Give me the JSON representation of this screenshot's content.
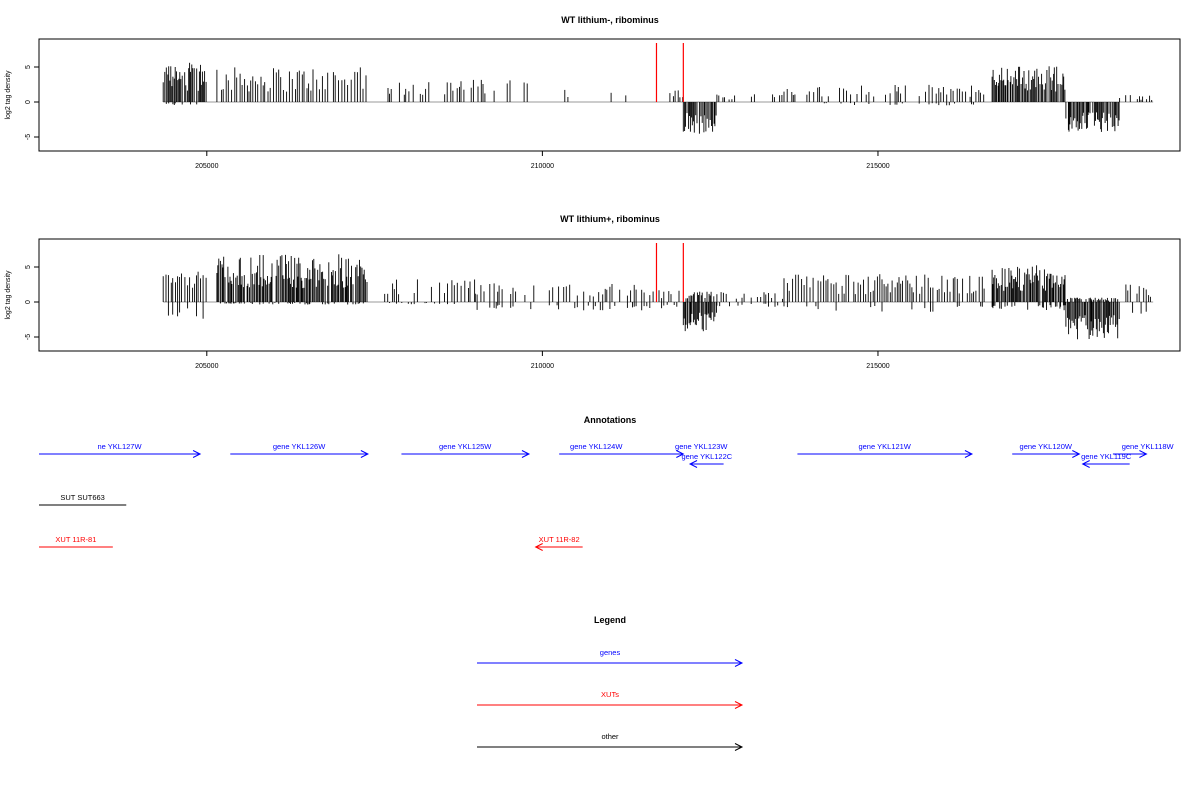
{
  "chart_data": [
    {
      "type": "bar",
      "title": "WT lithium-, ribominus",
      "xlabel": "",
      "ylabel": "log2 tag density",
      "xlim": [
        202500,
        219500
      ],
      "ylim": [
        -7,
        9
      ],
      "xticks": [
        205000,
        210000,
        215000
      ],
      "yticks": [
        -5,
        0,
        5
      ],
      "markers": [
        211700,
        212100
      ],
      "segments": [
        {
          "x": [
            204350,
            205000
          ],
          "y": 4.5,
          "neg": 0.4
        },
        {
          "x": [
            205150,
            207400
          ],
          "y": 4.0,
          "neg": 0
        },
        {
          "x": [
            207700,
            209800
          ],
          "y": 2.6,
          "neg": 0
        },
        {
          "x": [
            210200,
            210400
          ],
          "y": 2.0,
          "neg": 0
        },
        {
          "x": [
            210900,
            211300
          ],
          "y": 1.5,
          "neg": 0
        },
        {
          "x": [
            211900,
            212100
          ],
          "y": 1.5,
          "neg": 0
        },
        {
          "x": [
            212100,
            212600
          ],
          "y": 0,
          "neg": 3.8
        },
        {
          "x": [
            212600,
            213600
          ],
          "y": 0.9,
          "neg": 0
        },
        {
          "x": [
            213600,
            214200
          ],
          "y": 1.8,
          "neg": 0
        },
        {
          "x": [
            214200,
            216600
          ],
          "y": 2.0,
          "neg": 0.4
        },
        {
          "x": [
            216700,
            217800
          ],
          "y": 4.2,
          "neg": 0
        },
        {
          "x": [
            217800,
            218600
          ],
          "y": 0,
          "neg": 3.6
        },
        {
          "x": [
            218600,
            219100
          ],
          "y": 0.8,
          "neg": 0
        }
      ]
    },
    {
      "type": "bar",
      "title": "WT lithium+, ribominus",
      "xlabel": "",
      "ylabel": "log2 tag density",
      "xlim": [
        202500,
        219500
      ],
      "ylim": [
        -7,
        9
      ],
      "xticks": [
        205000,
        210000,
        215000
      ],
      "yticks": [
        -5,
        0,
        5
      ],
      "markers": [
        211700,
        212100
      ],
      "segments": [
        {
          "x": [
            204350,
            205000
          ],
          "y": 3.5,
          "neg": 2.0
        },
        {
          "x": [
            205150,
            207400
          ],
          "y": 5.5,
          "neg": 0.3
        },
        {
          "x": [
            207650,
            209000
          ],
          "y": 2.6,
          "neg": 0.3
        },
        {
          "x": [
            209000,
            211600
          ],
          "y": 2.2,
          "neg": 1.0
        },
        {
          "x": [
            211600,
            212100
          ],
          "y": 1.5,
          "neg": 0.8
        },
        {
          "x": [
            212100,
            212600
          ],
          "y": 1.2,
          "neg": 3.6
        },
        {
          "x": [
            212600,
            213600
          ],
          "y": 1.2,
          "neg": 0.6
        },
        {
          "x": [
            213600,
            216600
          ],
          "y": 3.2,
          "neg": 1.2
        },
        {
          "x": [
            216700,
            217800
          ],
          "y": 4.2,
          "neg": 1.0
        },
        {
          "x": [
            217800,
            218600
          ],
          "y": 0.5,
          "neg": 4.5
        },
        {
          "x": [
            218600,
            219100
          ],
          "y": 2.0,
          "neg": 1.5
        }
      ]
    }
  ],
  "annotations": {
    "title": "Annotations",
    "features": [
      {
        "label": "ne YKL127W",
        "x1": 202500,
        "x2": 204900,
        "dir": "right",
        "color": "#0000ff",
        "row": 0
      },
      {
        "label": "gene YKL126W",
        "x1": 205350,
        "x2": 207400,
        "dir": "right",
        "color": "#0000ff",
        "row": 0
      },
      {
        "label": "gene YKL125W",
        "x1": 207900,
        "x2": 209800,
        "dir": "right",
        "color": "#0000ff",
        "row": 0
      },
      {
        "label": "gene YKL124W",
        "x1": 210250,
        "x2": 212100,
        "dir": "right",
        "color": "#0000ff",
        "row": 0,
        "labelOffset": -25
      },
      {
        "label": "gene YKL123W",
        "x1": 211750,
        "x2": 212150,
        "dir": "right",
        "color": "#0000ff",
        "row": 0,
        "labelOffset": 28,
        "noLine": true
      },
      {
        "label": "gene YKL122C",
        "x1": 212200,
        "x2": 212700,
        "dir": "left",
        "color": "#0000ff",
        "row": 1
      },
      {
        "label": "gene YKL121W",
        "x1": 213800,
        "x2": 216400,
        "dir": "right",
        "color": "#0000ff",
        "row": 0
      },
      {
        "label": "gene YKL120W",
        "x1": 217000,
        "x2": 218000,
        "dir": "right",
        "color": "#0000ff",
        "row": 0
      },
      {
        "label": "gene YKL119C",
        "x1": 218050,
        "x2": 218750,
        "dir": "left",
        "color": "#0000ff",
        "row": 1
      },
      {
        "label": "gene YKL118W",
        "x1": 218500,
        "x2": 219000,
        "dir": "right",
        "color": "#0000ff",
        "row": 0,
        "labelOffset": 18
      },
      {
        "label": "SUT SUT663",
        "x1": 202500,
        "x2": 203800,
        "dir": "none",
        "color": "#000000",
        "row": 2
      },
      {
        "label": "XUT 11R-81",
        "x1": 202500,
        "x2": 203600,
        "dir": "none",
        "color": "#ff0000",
        "row": 3
      },
      {
        "label": "XUT 11R-82",
        "x1": 209900,
        "x2": 210600,
        "dir": "left",
        "color": "#ff0000",
        "row": 3
      }
    ]
  },
  "legend": {
    "title": "Legend",
    "items": [
      {
        "label": "genes",
        "color": "#0000ff"
      },
      {
        "label": "XUTs",
        "color": "#ff0000"
      },
      {
        "label": "other",
        "color": "#000000"
      }
    ]
  }
}
